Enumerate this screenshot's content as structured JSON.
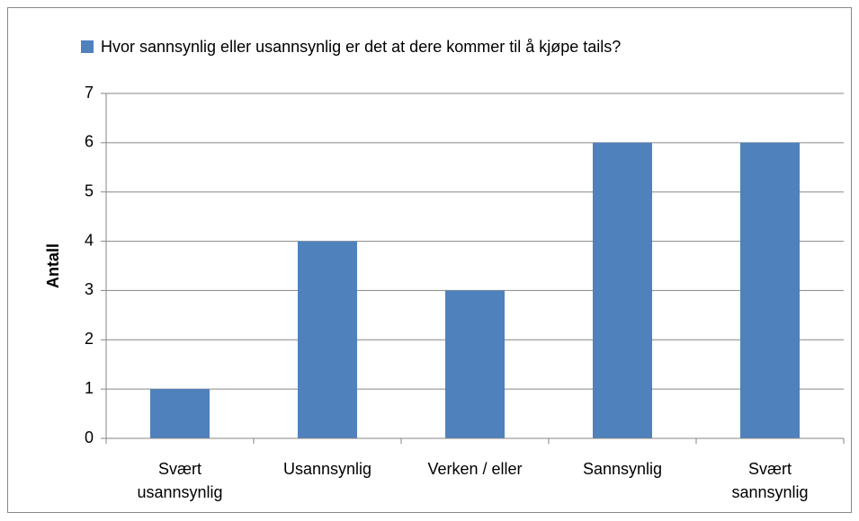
{
  "chart_data": {
    "type": "bar",
    "legend_label": "Hvor sannsynlig eller usannsynlig er det at dere kommer til å kjøpe tails?",
    "y_axis_label": "Antall",
    "categories": [
      "Svært\nusannsynlig",
      "Usannsynlig",
      "Verken / eller",
      "Sannsynlig",
      "Svært\nsannsynlig"
    ],
    "values": [
      1,
      4,
      3,
      6,
      6
    ],
    "color": "#4f81bd",
    "ylim": [
      0,
      7
    ],
    "yticks": [
      0,
      1,
      2,
      3,
      4,
      5,
      6,
      7
    ],
    "grid": true
  }
}
